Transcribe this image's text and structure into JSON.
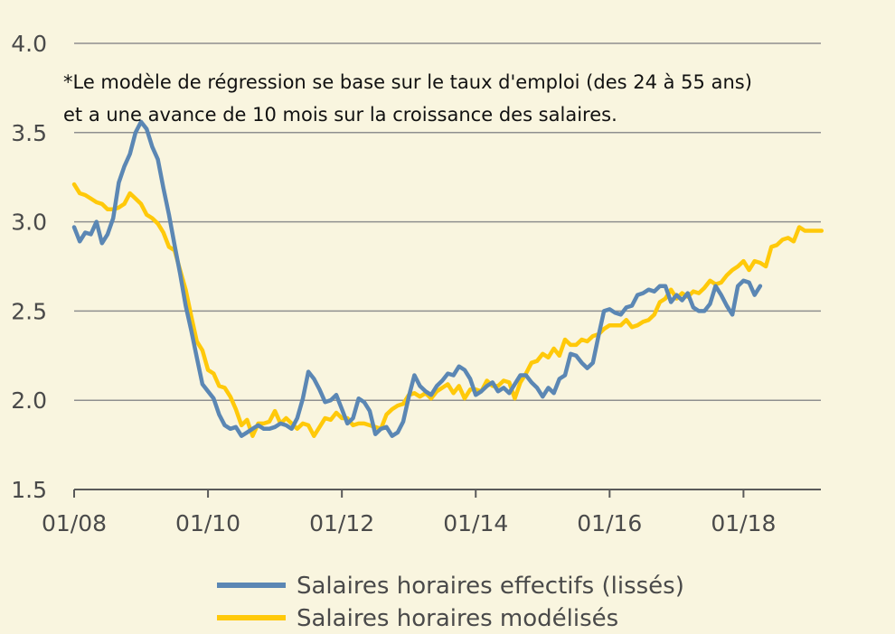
{
  "chart_data": {
    "type": "line",
    "note_lines": [
      "*Le modèle de régression se base sur le taux d'emploi (des 24 à 55 ans)",
      "et a une avance de 10 mois sur la croissance des salaires."
    ],
    "ylim": [
      1.5,
      4.0
    ],
    "yticks": [
      "4.0",
      "3.5",
      "3.0",
      "2.5",
      "2.0",
      "1.5"
    ],
    "ytick_values": [
      4.0,
      3.5,
      3.0,
      2.5,
      2.0,
      1.5
    ],
    "xlim": [
      "2008-01",
      "2019-03"
    ],
    "xticks": [
      "01/08",
      "01/10",
      "01/12",
      "01/14",
      "01/16",
      "01/18"
    ],
    "xtick_dates": [
      "2008-01",
      "2010-01",
      "2012-01",
      "2014-01",
      "2016-01",
      "2018-01"
    ],
    "grid": "horizontal",
    "legend_position": "bottom",
    "series": [
      {
        "name": "Salaires horaires effectifs (lissés)",
        "color": "#5b87b4",
        "points": [
          [
            "2008-01",
            2.97
          ],
          [
            "2008-02",
            2.89
          ],
          [
            "2008-03",
            2.94
          ],
          [
            "2008-04",
            2.93
          ],
          [
            "2008-05",
            3.0
          ],
          [
            "2008-06",
            2.88
          ],
          [
            "2008-07",
            2.93
          ],
          [
            "2008-08",
            3.02
          ],
          [
            "2008-09",
            3.22
          ],
          [
            "2008-10",
            3.31
          ],
          [
            "2008-11",
            3.38
          ],
          [
            "2008-12",
            3.5
          ],
          [
            "2009-01",
            3.56
          ],
          [
            "2009-02",
            3.52
          ],
          [
            "2009-03",
            3.42
          ],
          [
            "2009-04",
            3.35
          ],
          [
            "2009-05",
            3.19
          ],
          [
            "2009-06",
            3.04
          ],
          [
            "2009-07",
            2.87
          ],
          [
            "2009-08",
            2.71
          ],
          [
            "2009-09",
            2.53
          ],
          [
            "2009-10",
            2.39
          ],
          [
            "2009-11",
            2.24
          ],
          [
            "2009-12",
            2.09
          ],
          [
            "2010-01",
            2.05
          ],
          [
            "2010-02",
            2.01
          ],
          [
            "2010-03",
            1.92
          ],
          [
            "2010-04",
            1.86
          ],
          [
            "2010-05",
            1.84
          ],
          [
            "2010-06",
            1.85
          ],
          [
            "2010-07",
            1.8
          ],
          [
            "2010-08",
            1.82
          ],
          [
            "2010-09",
            1.84
          ],
          [
            "2010-10",
            1.86
          ],
          [
            "2010-11",
            1.84
          ],
          [
            "2010-12",
            1.84
          ],
          [
            "2011-01",
            1.85
          ],
          [
            "2011-02",
            1.87
          ],
          [
            "2011-03",
            1.86
          ],
          [
            "2011-04",
            1.84
          ],
          [
            "2011-05",
            1.9
          ],
          [
            "2011-06",
            2.01
          ],
          [
            "2011-07",
            2.16
          ],
          [
            "2011-08",
            2.12
          ],
          [
            "2011-09",
            2.06
          ],
          [
            "2011-10",
            1.99
          ],
          [
            "2011-11",
            2.0
          ],
          [
            "2011-12",
            2.03
          ],
          [
            "2012-01",
            1.95
          ],
          [
            "2012-02",
            1.87
          ],
          [
            "2012-03",
            1.9
          ],
          [
            "2012-04",
            2.01
          ],
          [
            "2012-05",
            1.99
          ],
          [
            "2012-06",
            1.94
          ],
          [
            "2012-07",
            1.81
          ],
          [
            "2012-08",
            1.84
          ],
          [
            "2012-09",
            1.85
          ],
          [
            "2012-10",
            1.8
          ],
          [
            "2012-11",
            1.82
          ],
          [
            "2012-12",
            1.88
          ],
          [
            "2013-01",
            2.02
          ],
          [
            "2013-02",
            2.14
          ],
          [
            "2013-03",
            2.08
          ],
          [
            "2013-04",
            2.05
          ],
          [
            "2013-05",
            2.03
          ],
          [
            "2013-06",
            2.08
          ],
          [
            "2013-07",
            2.11
          ],
          [
            "2013-08",
            2.15
          ],
          [
            "2013-09",
            2.14
          ],
          [
            "2013-10",
            2.19
          ],
          [
            "2013-11",
            2.17
          ],
          [
            "2013-12",
            2.12
          ],
          [
            "2014-01",
            2.03
          ],
          [
            "2014-02",
            2.05
          ],
          [
            "2014-03",
            2.08
          ],
          [
            "2014-04",
            2.1
          ],
          [
            "2014-05",
            2.05
          ],
          [
            "2014-06",
            2.07
          ],
          [
            "2014-07",
            2.04
          ],
          [
            "2014-08",
            2.09
          ],
          [
            "2014-09",
            2.14
          ],
          [
            "2014-10",
            2.14
          ],
          [
            "2014-11",
            2.1
          ],
          [
            "2014-12",
            2.07
          ],
          [
            "2015-01",
            2.02
          ],
          [
            "2015-02",
            2.07
          ],
          [
            "2015-03",
            2.04
          ],
          [
            "2015-04",
            2.12
          ],
          [
            "2015-05",
            2.14
          ],
          [
            "2015-06",
            2.26
          ],
          [
            "2015-07",
            2.25
          ],
          [
            "2015-08",
            2.21
          ],
          [
            "2015-09",
            2.18
          ],
          [
            "2015-10",
            2.21
          ],
          [
            "2015-11",
            2.36
          ],
          [
            "2015-12",
            2.5
          ],
          [
            "2016-01",
            2.51
          ],
          [
            "2016-02",
            2.49
          ],
          [
            "2016-03",
            2.48
          ],
          [
            "2016-04",
            2.52
          ],
          [
            "2016-05",
            2.53
          ],
          [
            "2016-06",
            2.59
          ],
          [
            "2016-07",
            2.6
          ],
          [
            "2016-08",
            2.62
          ],
          [
            "2016-09",
            2.61
          ],
          [
            "2016-10",
            2.64
          ],
          [
            "2016-11",
            2.64
          ],
          [
            "2016-12",
            2.55
          ],
          [
            "2017-01",
            2.59
          ],
          [
            "2017-02",
            2.56
          ],
          [
            "2017-03",
            2.6
          ],
          [
            "2017-04",
            2.52
          ],
          [
            "2017-05",
            2.5
          ],
          [
            "2017-06",
            2.5
          ],
          [
            "2017-07",
            2.54
          ],
          [
            "2017-08",
            2.64
          ],
          [
            "2017-09",
            2.59
          ],
          [
            "2017-10",
            2.53
          ],
          [
            "2017-11",
            2.48
          ],
          [
            "2017-12",
            2.64
          ],
          [
            "2018-01",
            2.67
          ],
          [
            "2018-02",
            2.66
          ],
          [
            "2018-03",
            2.59
          ],
          [
            "2018-04",
            2.64
          ]
        ]
      },
      {
        "name": "Salaires horaires modélisés",
        "color": "#ffc90a",
        "points": [
          [
            "2008-01",
            3.21
          ],
          [
            "2008-02",
            3.16
          ],
          [
            "2008-03",
            3.15
          ],
          [
            "2008-04",
            3.13
          ],
          [
            "2008-05",
            3.11
          ],
          [
            "2008-06",
            3.1
          ],
          [
            "2008-07",
            3.07
          ],
          [
            "2008-08",
            3.07
          ],
          [
            "2008-09",
            3.08
          ],
          [
            "2008-10",
            3.1
          ],
          [
            "2008-11",
            3.16
          ],
          [
            "2008-12",
            3.13
          ],
          [
            "2009-01",
            3.1
          ],
          [
            "2009-02",
            3.04
          ],
          [
            "2009-03",
            3.02
          ],
          [
            "2009-04",
            2.99
          ],
          [
            "2009-05",
            2.94
          ],
          [
            "2009-06",
            2.86
          ],
          [
            "2009-07",
            2.84
          ],
          [
            "2009-08",
            2.73
          ],
          [
            "2009-09",
            2.62
          ],
          [
            "2009-10",
            2.47
          ],
          [
            "2009-11",
            2.33
          ],
          [
            "2009-12",
            2.28
          ],
          [
            "2010-01",
            2.17
          ],
          [
            "2010-02",
            2.15
          ],
          [
            "2010-03",
            2.08
          ],
          [
            "2010-04",
            2.07
          ],
          [
            "2010-05",
            2.02
          ],
          [
            "2010-06",
            1.95
          ],
          [
            "2010-07",
            1.86
          ],
          [
            "2010-08",
            1.89
          ],
          [
            "2010-09",
            1.8
          ],
          [
            "2010-10",
            1.87
          ],
          [
            "2010-11",
            1.87
          ],
          [
            "2010-12",
            1.88
          ],
          [
            "2011-01",
            1.94
          ],
          [
            "2011-02",
            1.87
          ],
          [
            "2011-03",
            1.9
          ],
          [
            "2011-04",
            1.87
          ],
          [
            "2011-05",
            1.84
          ],
          [
            "2011-06",
            1.87
          ],
          [
            "2011-07",
            1.86
          ],
          [
            "2011-08",
            1.8
          ],
          [
            "2011-09",
            1.85
          ],
          [
            "2011-10",
            1.9
          ],
          [
            "2011-11",
            1.89
          ],
          [
            "2011-12",
            1.93
          ],
          [
            "2012-01",
            1.9
          ],
          [
            "2012-02",
            1.9
          ],
          [
            "2012-03",
            1.86
          ],
          [
            "2012-04",
            1.87
          ],
          [
            "2012-05",
            1.87
          ],
          [
            "2012-06",
            1.86
          ],
          [
            "2012-07",
            1.85
          ],
          [
            "2012-08",
            1.84
          ],
          [
            "2012-09",
            1.92
          ],
          [
            "2012-10",
            1.95
          ],
          [
            "2012-11",
            1.97
          ],
          [
            "2012-12",
            1.98
          ],
          [
            "2013-01",
            2.03
          ],
          [
            "2013-02",
            2.04
          ],
          [
            "2013-03",
            2.02
          ],
          [
            "2013-04",
            2.04
          ],
          [
            "2013-05",
            2.01
          ],
          [
            "2013-06",
            2.05
          ],
          [
            "2013-07",
            2.07
          ],
          [
            "2013-08",
            2.09
          ],
          [
            "2013-09",
            2.04
          ],
          [
            "2013-10",
            2.08
          ],
          [
            "2013-11",
            2.01
          ],
          [
            "2013-12",
            2.06
          ],
          [
            "2014-01",
            2.06
          ],
          [
            "2014-02",
            2.05
          ],
          [
            "2014-03",
            2.11
          ],
          [
            "2014-04",
            2.08
          ],
          [
            "2014-05",
            2.08
          ],
          [
            "2014-06",
            2.11
          ],
          [
            "2014-07",
            2.1
          ],
          [
            "2014-08",
            2.01
          ],
          [
            "2014-09",
            2.1
          ],
          [
            "2014-10",
            2.15
          ],
          [
            "2014-11",
            2.21
          ],
          [
            "2014-12",
            2.22
          ],
          [
            "2015-01",
            2.26
          ],
          [
            "2015-02",
            2.24
          ],
          [
            "2015-03",
            2.29
          ],
          [
            "2015-04",
            2.25
          ],
          [
            "2015-05",
            2.34
          ],
          [
            "2015-06",
            2.31
          ],
          [
            "2015-07",
            2.31
          ],
          [
            "2015-08",
            2.34
          ],
          [
            "2015-09",
            2.33
          ],
          [
            "2015-10",
            2.36
          ],
          [
            "2015-11",
            2.37
          ],
          [
            "2015-12",
            2.4
          ],
          [
            "2016-01",
            2.42
          ],
          [
            "2016-02",
            2.42
          ],
          [
            "2016-03",
            2.42
          ],
          [
            "2016-04",
            2.45
          ],
          [
            "2016-05",
            2.41
          ],
          [
            "2016-06",
            2.42
          ],
          [
            "2016-07",
            2.44
          ],
          [
            "2016-08",
            2.45
          ],
          [
            "2016-09",
            2.48
          ],
          [
            "2016-10",
            2.55
          ],
          [
            "2016-11",
            2.57
          ],
          [
            "2016-12",
            2.62
          ],
          [
            "2017-01",
            2.57
          ],
          [
            "2017-02",
            2.6
          ],
          [
            "2017-03",
            2.58
          ],
          [
            "2017-04",
            2.61
          ],
          [
            "2017-05",
            2.6
          ],
          [
            "2017-06",
            2.63
          ],
          [
            "2017-07",
            2.67
          ],
          [
            "2017-08",
            2.65
          ],
          [
            "2017-09",
            2.66
          ],
          [
            "2017-10",
            2.7
          ],
          [
            "2017-11",
            2.73
          ],
          [
            "2017-12",
            2.75
          ],
          [
            "2018-01",
            2.78
          ],
          [
            "2018-02",
            2.73
          ],
          [
            "2018-03",
            2.78
          ],
          [
            "2018-04",
            2.77
          ],
          [
            "2018-05",
            2.75
          ],
          [
            "2018-06",
            2.86
          ],
          [
            "2018-07",
            2.87
          ],
          [
            "2018-08",
            2.9
          ],
          [
            "2018-09",
            2.91
          ],
          [
            "2018-10",
            2.89
          ],
          [
            "2018-11",
            2.97
          ],
          [
            "2018-12",
            2.95
          ],
          [
            "2019-01",
            2.95
          ],
          [
            "2019-02",
            2.95
          ],
          [
            "2019-03",
            2.95
          ]
        ]
      }
    ]
  }
}
